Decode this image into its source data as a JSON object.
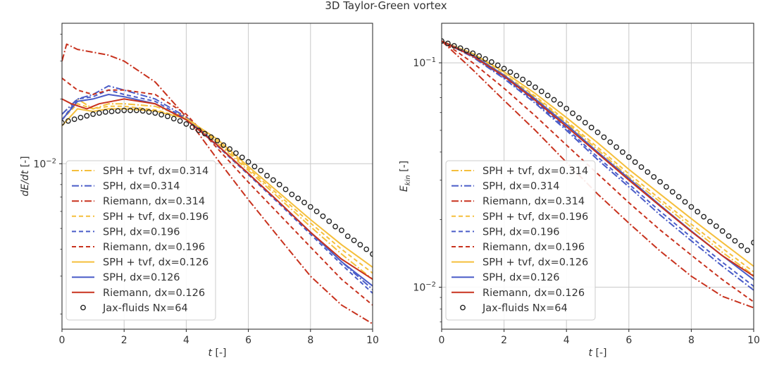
{
  "figure_title": "3D Taylor-Green vortex",
  "colors": {
    "sph_tvf": "#f5bf3c",
    "sph": "#4a5cc8",
    "riemann": "#c8321e",
    "jax": "#222222"
  },
  "legend_entries": [
    {
      "label": "SPH + tvf, dx=0.314",
      "color": "#f5bf3c",
      "style": "dashdot"
    },
    {
      "label": "SPH, dx=0.314",
      "color": "#4a5cc8",
      "style": "dashdot"
    },
    {
      "label": "Riemann, dx=0.314",
      "color": "#c8321e",
      "style": "dashdot"
    },
    {
      "label": "SPH + tvf, dx=0.196",
      "color": "#f5bf3c",
      "style": "dashed"
    },
    {
      "label": "SPH, dx=0.196",
      "color": "#4a5cc8",
      "style": "dashed"
    },
    {
      "label": "Riemann, dx=0.196",
      "color": "#c8321e",
      "style": "dashed"
    },
    {
      "label": "SPH + tvf, dx=0.126",
      "color": "#f5bf3c",
      "style": "solid"
    },
    {
      "label": "SPH, dx=0.126",
      "color": "#4a5cc8",
      "style": "solid"
    },
    {
      "label": "Riemann, dx=0.126",
      "color": "#c8321e",
      "style": "solid"
    },
    {
      "label": "Jax-fluids Nx=64",
      "color": "#222222",
      "style": "marker"
    }
  ],
  "chart_data": [
    {
      "type": "line",
      "title": "",
      "xlabel": "t [-]",
      "ylabel": "dE/dt [-]",
      "yscale": "log",
      "xlim": [
        0,
        10
      ],
      "ylim": [
        0.0017,
        0.045
      ],
      "xticks": [
        0,
        2,
        4,
        6,
        8,
        10
      ],
      "xtick_labels": [
        "0",
        "2",
        "4",
        "6",
        "8",
        "10"
      ],
      "yticks": [
        0.01
      ],
      "ytick_labels": [
        "10−2"
      ],
      "legend_location": "lower-left",
      "series": [
        {
          "name": "SPH + tvf, dx=0.314",
          "x": [
            0,
            0.5,
            1,
            1.5,
            2,
            3,
            4,
            5,
            6,
            7,
            8,
            9,
            10
          ],
          "y": [
            0.017,
            0.02,
            0.018,
            0.019,
            0.019,
            0.0185,
            0.0165,
            0.0125,
            0.0093,
            0.0069,
            0.0051,
            0.0038,
            0.0029
          ]
        },
        {
          "name": "SPH, dx=0.314",
          "x": [
            0,
            0.5,
            1,
            1.5,
            2,
            3,
            4,
            5,
            6,
            7,
            8,
            9,
            10
          ],
          "y": [
            0.017,
            0.02,
            0.021,
            0.023,
            0.022,
            0.02,
            0.0165,
            0.0122,
            0.009,
            0.0066,
            0.0048,
            0.0035,
            0.0026
          ]
        },
        {
          "name": "Riemann, dx=0.314",
          "x": [
            0,
            0.15,
            0.5,
            1,
            1.5,
            2,
            3,
            4,
            5,
            6,
            7,
            8,
            9,
            10
          ],
          "y": [
            0.03,
            0.036,
            0.034,
            0.033,
            0.032,
            0.03,
            0.024,
            0.0165,
            0.0105,
            0.0068,
            0.0045,
            0.003,
            0.0022,
            0.0018
          ]
        },
        {
          "name": "SPH + tvf, dx=0.196",
          "x": [
            0,
            0.5,
            1,
            1.5,
            2,
            3,
            4,
            5,
            6,
            7,
            8,
            9,
            10
          ],
          "y": [
            0.016,
            0.019,
            0.018,
            0.0185,
            0.0185,
            0.0178,
            0.0163,
            0.0127,
            0.0095,
            0.0071,
            0.0053,
            0.004,
            0.0031
          ]
        },
        {
          "name": "SPH, dx=0.196",
          "x": [
            0,
            0.5,
            1,
            1.5,
            2,
            3,
            4,
            5,
            6,
            7,
            8,
            9,
            10
          ],
          "y": [
            0.016,
            0.02,
            0.0205,
            0.022,
            0.021,
            0.0195,
            0.0162,
            0.0121,
            0.0089,
            0.0065,
            0.0047,
            0.0034,
            0.0025
          ]
        },
        {
          "name": "Riemann, dx=0.196",
          "x": [
            0,
            0.5,
            1,
            1.5,
            2,
            3,
            4,
            5,
            6,
            7,
            8,
            9,
            10
          ],
          "y": [
            0.025,
            0.022,
            0.021,
            0.022,
            0.022,
            0.021,
            0.017,
            0.0118,
            0.0082,
            0.0058,
            0.0041,
            0.0029,
            0.0022
          ]
        },
        {
          "name": "SPH + tvf, dx=0.126",
          "x": [
            0,
            0.5,
            1,
            1.5,
            2,
            3,
            4,
            5,
            6,
            7,
            8,
            9,
            10
          ],
          "y": [
            0.015,
            0.018,
            0.0175,
            0.018,
            0.018,
            0.0176,
            0.0162,
            0.013,
            0.0097,
            0.0073,
            0.0055,
            0.0042,
            0.0033
          ]
        },
        {
          "name": "SPH, dx=0.126",
          "x": [
            0,
            0.5,
            1,
            1.5,
            2,
            3,
            4,
            5,
            6,
            7,
            8,
            9,
            10
          ],
          "y": [
            0.016,
            0.0195,
            0.02,
            0.021,
            0.0205,
            0.019,
            0.016,
            0.0122,
            0.009,
            0.0066,
            0.0048,
            0.0035,
            0.0027
          ]
        },
        {
          "name": "Riemann, dx=0.126",
          "x": [
            0,
            0.3,
            0.8,
            1.2,
            1.6,
            2,
            3,
            4,
            5,
            6,
            7,
            8,
            9,
            10
          ],
          "y": [
            0.02,
            0.019,
            0.018,
            0.019,
            0.0195,
            0.02,
            0.019,
            0.016,
            0.0122,
            0.009,
            0.0066,
            0.0048,
            0.0036,
            0.0029
          ]
        },
        {
          "name": "Jax-fluids Nx=64",
          "x": [
            0,
            0.2,
            0.4,
            0.6,
            0.8,
            1.0,
            1.2,
            1.4,
            1.6,
            1.8,
            2.0,
            2.2,
            2.4,
            2.6,
            2.8,
            3.0,
            3.2,
            3.4,
            3.6,
            3.8,
            4.0,
            4.2,
            4.4,
            4.6,
            4.8,
            5.0,
            5.2,
            5.4,
            5.6,
            5.8,
            6.0,
            6.2,
            6.4,
            6.6,
            6.8,
            7.0,
            7.2,
            7.4,
            7.6,
            7.8,
            8.0,
            8.2,
            8.4,
            8.6,
            8.8,
            9.0,
            9.2,
            9.4,
            9.6,
            9.8,
            10.0
          ],
          "y": [
            0.0155,
            0.0158,
            0.0161,
            0.0164,
            0.0167,
            0.017,
            0.0172,
            0.0174,
            0.0175,
            0.0176,
            0.0177,
            0.0177,
            0.0177,
            0.0176,
            0.0174,
            0.0172,
            0.0169,
            0.0166,
            0.0162,
            0.0158,
            0.0153,
            0.0148,
            0.0143,
            0.0138,
            0.0133,
            0.0128,
            0.0122,
            0.0117,
            0.0112,
            0.0107,
            0.0102,
            0.0097,
            0.0093,
            0.0088,
            0.0084,
            0.008,
            0.0076,
            0.0072,
            0.0069,
            0.0066,
            0.0063,
            0.006,
            0.0057,
            0.0054,
            0.0051,
            0.0049,
            0.0046,
            0.0044,
            0.0042,
            0.004,
            0.0038
          ]
        }
      ]
    },
    {
      "type": "line",
      "title": "",
      "xlabel": "t [-]",
      "ylabel": "E_kin [-]",
      "yscale": "log",
      "xlim": [
        0,
        10
      ],
      "ylim": [
        0.0065,
        0.15
      ],
      "xticks": [
        0,
        2,
        4,
        6,
        8,
        10
      ],
      "xtick_labels": [
        "0",
        "2",
        "4",
        "6",
        "8",
        "10"
      ],
      "yticks": [
        0.01,
        0.1
      ],
      "ytick_labels": [
        "10−2",
        "10−1"
      ],
      "legend_location": "lower-left",
      "series": [
        {
          "name": "SPH + tvf, dx=0.314",
          "x": [
            0,
            1,
            2,
            3,
            4,
            5,
            6,
            7,
            8,
            9,
            10
          ],
          "y": [
            0.125,
            0.108,
            0.088,
            0.07,
            0.054,
            0.041,
            0.031,
            0.024,
            0.0185,
            0.0143,
            0.0113
          ]
        },
        {
          "name": "SPH, dx=0.314",
          "x": [
            0,
            1,
            2,
            3,
            4,
            5,
            6,
            7,
            8,
            9,
            10
          ],
          "y": [
            0.125,
            0.106,
            0.085,
            0.066,
            0.05,
            0.037,
            0.028,
            0.021,
            0.0161,
            0.0124,
            0.0097
          ]
        },
        {
          "name": "Riemann, dx=0.314",
          "x": [
            0,
            1,
            2,
            3,
            4,
            5,
            6,
            7,
            8,
            9,
            10
          ],
          "y": [
            0.125,
            0.093,
            0.068,
            0.05,
            0.036,
            0.026,
            0.0193,
            0.0145,
            0.0112,
            0.0091,
            0.0081
          ]
        },
        {
          "name": "SPH + tvf, dx=0.196",
          "x": [
            0,
            1,
            2,
            3,
            4,
            5,
            6,
            7,
            8,
            9,
            10
          ],
          "y": [
            0.125,
            0.109,
            0.089,
            0.071,
            0.055,
            0.042,
            0.032,
            0.0247,
            0.0191,
            0.0149,
            0.0117
          ]
        },
        {
          "name": "SPH, dx=0.196",
          "x": [
            0,
            1,
            2,
            3,
            4,
            5,
            6,
            7,
            8,
            9,
            10
          ],
          "y": [
            0.125,
            0.107,
            0.086,
            0.067,
            0.051,
            0.038,
            0.0288,
            0.0218,
            0.0167,
            0.0129,
            0.0101
          ]
        },
        {
          "name": "Riemann, dx=0.196",
          "x": [
            0,
            1,
            2,
            3,
            4,
            5,
            6,
            7,
            8,
            9,
            10
          ],
          "y": [
            0.125,
            0.1,
            0.077,
            0.058,
            0.043,
            0.032,
            0.0238,
            0.018,
            0.0139,
            0.0108,
            0.0086
          ]
        },
        {
          "name": "SPH + tvf, dx=0.126",
          "x": [
            0,
            1,
            2,
            3,
            4,
            5,
            6,
            7,
            8,
            9,
            10
          ],
          "y": [
            0.125,
            0.11,
            0.091,
            0.073,
            0.057,
            0.044,
            0.0335,
            0.026,
            0.0202,
            0.0158,
            0.0124
          ]
        },
        {
          "name": "SPH, dx=0.126",
          "x": [
            0,
            1,
            2,
            3,
            4,
            5,
            6,
            7,
            8,
            9,
            10
          ],
          "y": [
            0.125,
            0.108,
            0.088,
            0.069,
            0.053,
            0.04,
            0.0305,
            0.0232,
            0.0178,
            0.0138,
            0.0108
          ]
        },
        {
          "name": "Riemann, dx=0.126",
          "x": [
            0,
            1,
            2,
            3,
            4,
            5,
            6,
            7,
            8,
            9,
            10
          ],
          "y": [
            0.125,
            0.107,
            0.087,
            0.068,
            0.052,
            0.0395,
            0.03,
            0.023,
            0.0177,
            0.0138,
            0.0112
          ]
        },
        {
          "name": "Jax-fluids Nx=64",
          "x": [
            0,
            0.2,
            0.4,
            0.6,
            0.8,
            1.0,
            1.2,
            1.4,
            1.6,
            1.8,
            2.0,
            2.2,
            2.4,
            2.6,
            2.8,
            3.0,
            3.2,
            3.4,
            3.6,
            3.8,
            4.0,
            4.2,
            4.4,
            4.6,
            4.8,
            5.0,
            5.2,
            5.4,
            5.6,
            5.8,
            6.0,
            6.2,
            6.4,
            6.6,
            6.8,
            7.0,
            7.2,
            7.4,
            7.6,
            7.8,
            8.0,
            8.2,
            8.4,
            8.6,
            8.8,
            9.0,
            9.2,
            9.4,
            9.6,
            9.8,
            10.0
          ],
          "y": [
            0.125,
            0.122,
            0.119,
            0.1162,
            0.1133,
            0.1103,
            0.1072,
            0.104,
            0.1008,
            0.0975,
            0.0942,
            0.0909,
            0.0876,
            0.0843,
            0.081,
            0.0778,
            0.0746,
            0.0715,
            0.0684,
            0.0654,
            0.0625,
            0.0596,
            0.0568,
            0.0541,
            0.0515,
            0.049,
            0.0466,
            0.0443,
            0.0421,
            0.04,
            0.038,
            0.0361,
            0.0343,
            0.0326,
            0.031,
            0.0295,
            0.028,
            0.0266,
            0.0253,
            0.024,
            0.0228,
            0.0217,
            0.0206,
            0.0196,
            0.0187,
            0.0178,
            0.0169,
            0.0161,
            0.0153,
            0.0146,
            0.0158
          ]
        }
      ]
    }
  ]
}
